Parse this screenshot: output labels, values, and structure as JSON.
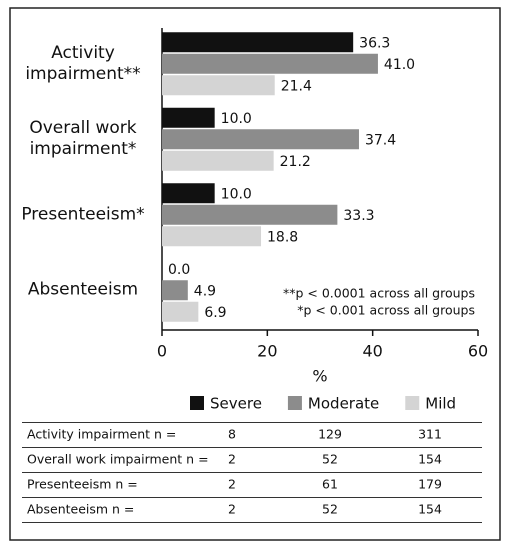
{
  "chart_data": {
    "type": "hbar",
    "categories": [
      "Activity impairment**",
      "Overall work impairment*",
      "Presenteeism*",
      "Absenteeism"
    ],
    "series": [
      {
        "name": "Severe",
        "color": "#111111",
        "values": [
          36.3,
          10,
          10,
          0
        ],
        "value_labels": [
          "36.3",
          "10.0",
          "10.0",
          "0.0"
        ]
      },
      {
        "name": "Moderate",
        "color": "#8c8c8c",
        "values": [
          41,
          37.4,
          33.3,
          4.9
        ],
        "value_labels": [
          "41.0",
          "37.4",
          "33.3",
          "4.9"
        ]
      },
      {
        "name": "Mild",
        "color": "#d4d4d4",
        "values": [
          21.4,
          21.2,
          18.8,
          6.9
        ],
        "value_labels": [
          "21.4",
          "21.2",
          "18.8",
          "6.9"
        ]
      }
    ],
    "xlim": [
      0,
      60
    ],
    "xticks": [
      0,
      20,
      40,
      60
    ],
    "xlabel": "%",
    "annotations": [
      "**p < 0.0001 across all groups",
      "*p < 0.001 across all groups"
    ],
    "legend": "bottom"
  },
  "table": {
    "rows": [
      [
        "Activity impairment n =",
        8,
        129,
        311
      ],
      [
        "Overall work impairment n =",
        2,
        52,
        154
      ],
      [
        "Presenteeism n =",
        2,
        61,
        179
      ],
      [
        "Absenteeism n =",
        2,
        52,
        154
      ]
    ]
  }
}
